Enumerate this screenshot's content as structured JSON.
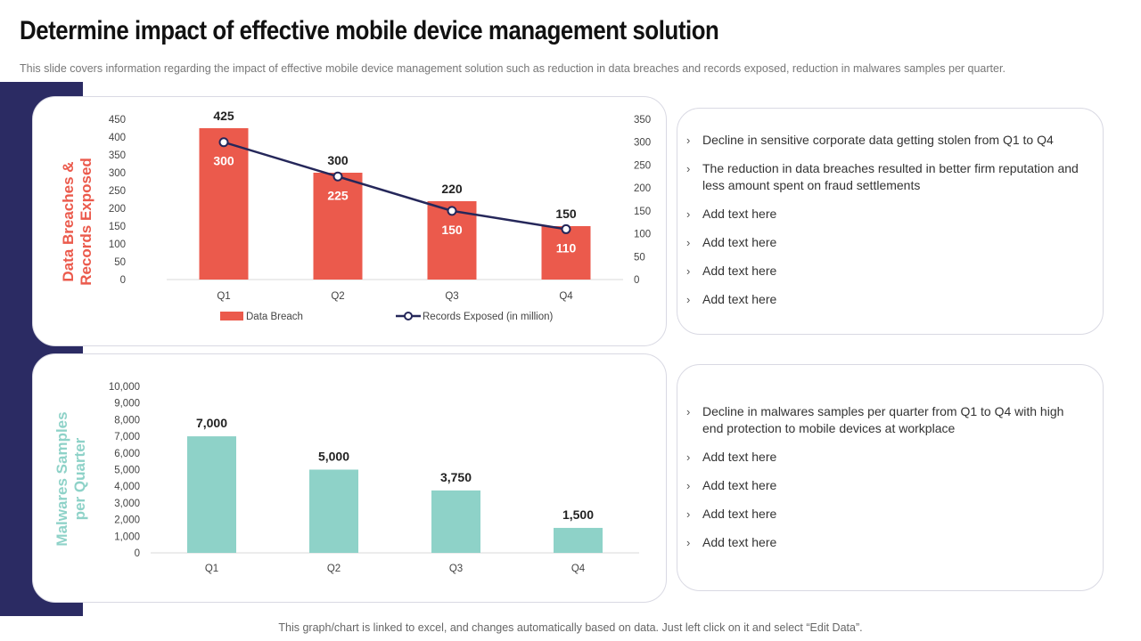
{
  "header": {
    "title": "Determine impact of effective mobile device management solution",
    "subtitle": "This slide covers information regarding the impact of effective mobile device management solution such as reduction in data breaches and records exposed, reduction in malwares samples per quarter."
  },
  "colors": {
    "band": "#2b2b63",
    "bar1": "#eb5a4c",
    "line": "#25275a",
    "bar2": "#8ed2c8",
    "axis_text": "#444444"
  },
  "chart_data": [
    {
      "type": "bar",
      "categories": [
        "Q1",
        "Q2",
        "Q3",
        "Q4"
      ],
      "series": [
        {
          "name": "Data Breach",
          "type": "bar",
          "axis": "left",
          "values": [
            425,
            300,
            220,
            150
          ]
        },
        {
          "name": "Records Exposed (in million)",
          "type": "line",
          "axis": "right",
          "values": [
            300,
            225,
            150,
            110
          ]
        }
      ],
      "ylabel": "Data Breaches & Records Exposed",
      "ylim": [
        0,
        450
      ],
      "yticks": [
        0,
        50,
        100,
        150,
        200,
        250,
        300,
        350,
        400,
        450
      ],
      "y2lim": [
        0,
        350
      ],
      "y2ticks": [
        0,
        50,
        100,
        150,
        200,
        250,
        300,
        350
      ],
      "legend": "bottom"
    },
    {
      "type": "bar",
      "categories": [
        "Q1",
        "Q2",
        "Q3",
        "Q4"
      ],
      "series": [
        {
          "name": "Malwares Samples",
          "values": [
            7000,
            5000,
            3750,
            1500
          ]
        }
      ],
      "value_labels": [
        "7,000",
        "5,000",
        "3,750",
        "1,500"
      ],
      "ylabel": "Malwares Samples per Quarter",
      "ylim": [
        0,
        10000
      ],
      "yticks": [
        0,
        1000,
        2000,
        3000,
        4000,
        5000,
        6000,
        7000,
        8000,
        9000,
        10000
      ],
      "ytick_labels": [
        "0",
        "1,000",
        "2,000",
        "3,000",
        "4,000",
        "5,000",
        "6,000",
        "7,000",
        "8,000",
        "9,000",
        "10,000"
      ]
    }
  ],
  "panel1": {
    "bullets": [
      "Decline in sensitive corporate data getting stolen from Q1 to Q4",
      "The reduction in data breaches resulted in better firm reputation and less amount spent on fraud settlements",
      "Add text here",
      "Add text here",
      "Add text here",
      "Add text here"
    ]
  },
  "panel2": {
    "bullets": [
      "Decline in malwares samples per quarter from Q1 to Q4 with high end protection to mobile devices at workplace",
      "Add text here",
      "Add text here",
      "Add text here",
      "Add text here"
    ]
  },
  "footer": {
    "note": "This graph/chart is linked to excel, and changes automatically based on data. Just left click on it and select “Edit Data”."
  }
}
